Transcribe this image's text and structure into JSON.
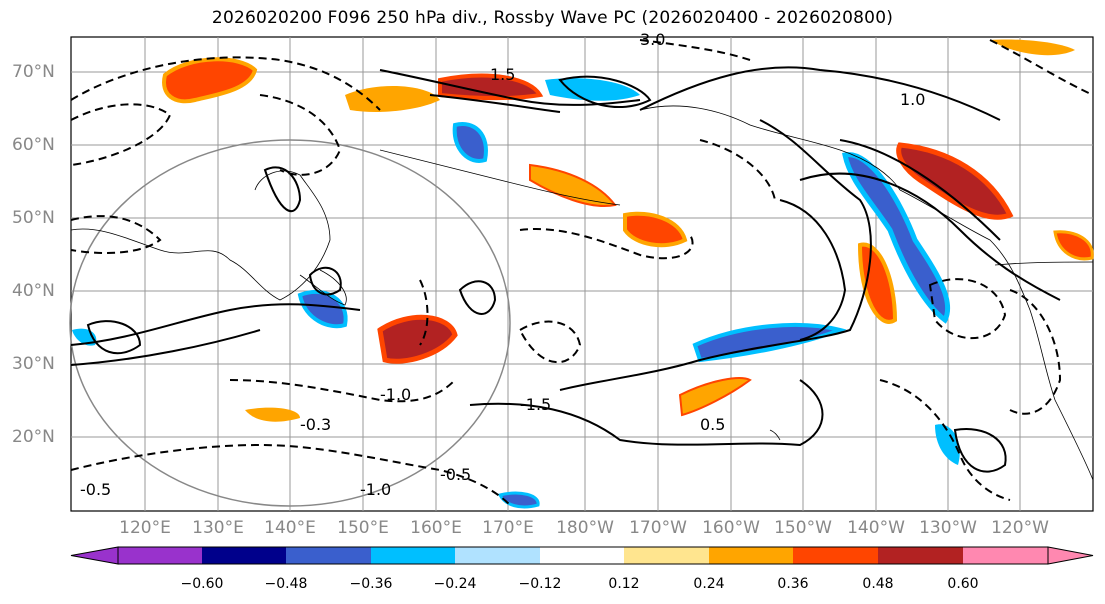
{
  "title": "2026020200 F096 250 hPa div., Rossby Wave PC (2026020400 - 2026020800)",
  "lat_labels": [
    "70°N",
    "60°N",
    "50°N",
    "40°N",
    "30°N",
    "20°N"
  ],
  "lon_labels": [
    "120°E",
    "130°E",
    "140°E",
    "150°E",
    "160°E",
    "170°E",
    "180°W",
    "170°W",
    "160°W",
    "150°W",
    "140°W",
    "130°W",
    "120°W"
  ],
  "colorbar": {
    "ticks": [
      "−0.60",
      "−0.48",
      "−0.36",
      "−0.24",
      "−0.12",
      "0.12",
      "0.24",
      "0.36",
      "0.48",
      "0.60"
    ],
    "colors": [
      "#9932cc",
      "#00008b",
      "#3a5fcd",
      "#00bfff",
      "#b0e2ff",
      "#ffffff",
      "#ffe58f",
      "#ffa500",
      "#ff4500",
      "#b22222",
      "#ff88b0"
    ]
  },
  "contour_labels": [
    "-0.5",
    "-1.0",
    "-1.5",
    "-0.3",
    "0.5",
    "1.0",
    "1.5",
    "3.0"
  ],
  "colors": {
    "positive_fill": "#ff4500",
    "negative_fill": "#3a5fcd",
    "grid": "#999999"
  }
}
